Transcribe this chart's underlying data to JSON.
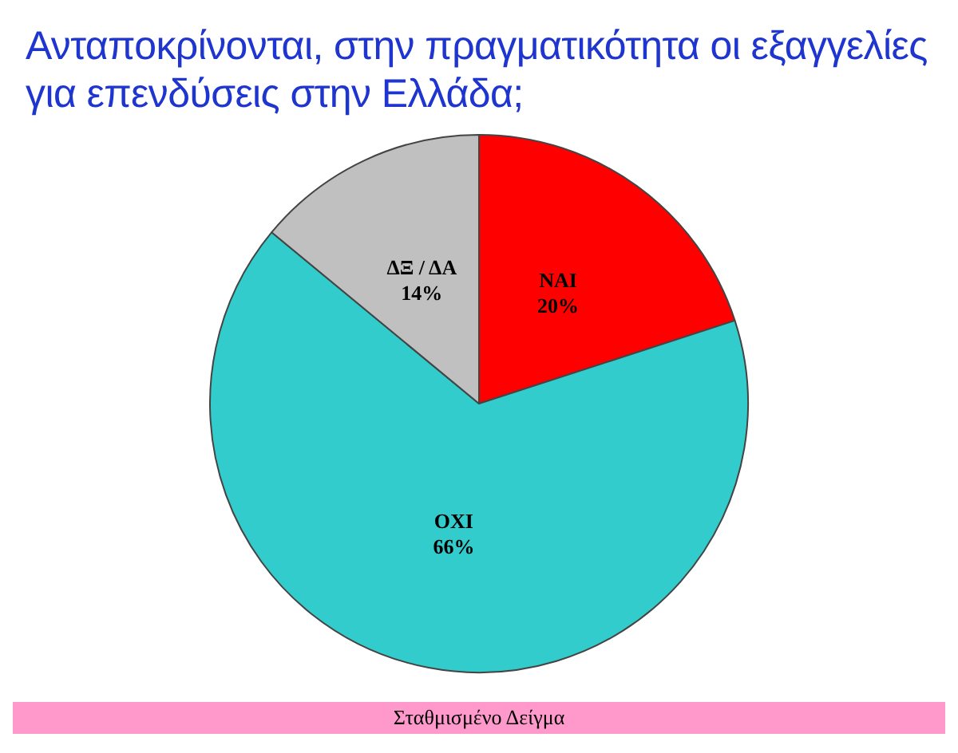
{
  "chart_data": {
    "type": "pie",
    "title": "Ανταποκρίνονται, στην πραγματικότητα οι εξαγγελίες για επενδύσεις στην Ελλάδα;",
    "categories": [
      "ΝΑΙ",
      "ΟΧΙ",
      "ΔΞ / ΔΑ"
    ],
    "values": [
      20,
      66,
      14
    ],
    "colors": [
      "#ff0000",
      "#33cccc",
      "#c0c0c0"
    ],
    "value_labels": [
      "20%",
      "66%",
      "14%"
    ],
    "legend": false,
    "annotations": [
      "Σταθμισμένο Δείγμα"
    ]
  }
}
